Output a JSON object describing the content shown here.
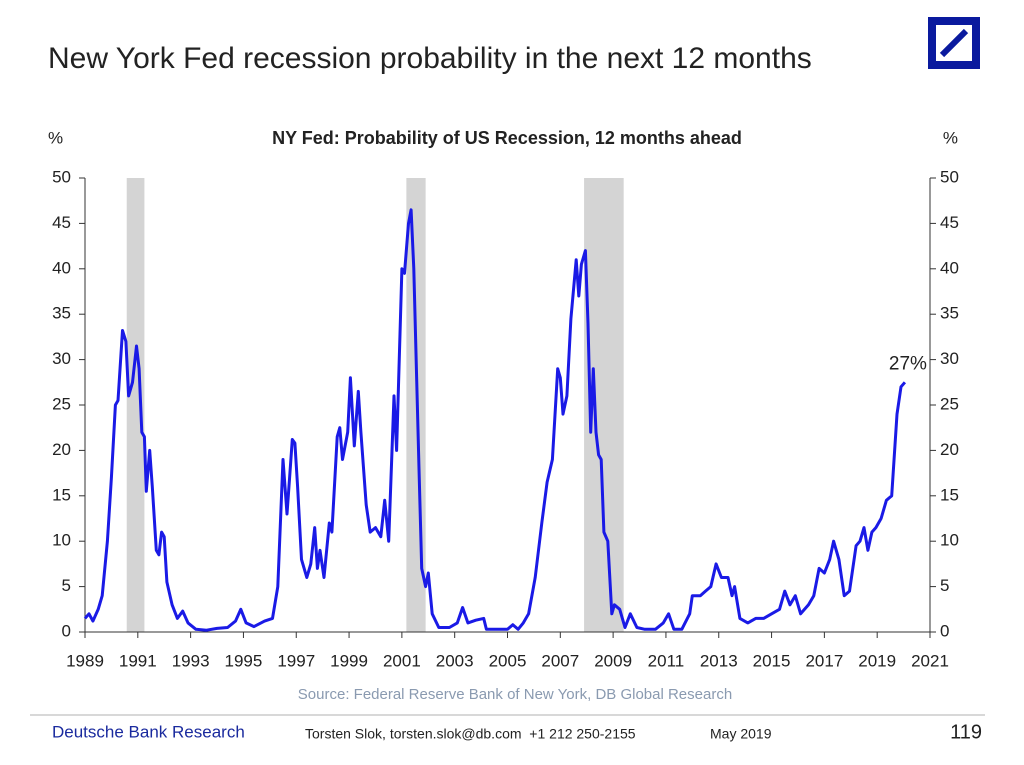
{
  "header": {
    "title": "New York Fed recession probability in the next 12 months"
  },
  "chart_data": {
    "type": "line",
    "title": "NY Fed: Probability of US Recession, 12 months ahead",
    "y_label": "%",
    "y2_label": "%",
    "source": "Source: Federal Reserve Bank of New York, DB Global Research",
    "annotation": "27%",
    "color": "#1a1ae6",
    "recession_color": "#d4d4d4",
    "recessions": [
      [
        1990.58,
        1991.25
      ],
      [
        2001.17,
        2001.9
      ],
      [
        2007.9,
        2009.4
      ]
    ],
    "xlim": [
      1989,
      2021
    ],
    "xticks": [
      1989,
      1991,
      1993,
      1995,
      1997,
      1999,
      2001,
      2003,
      2005,
      2007,
      2009,
      2011,
      2013,
      2015,
      2017,
      2019,
      2021
    ],
    "ylim": [
      0,
      50
    ],
    "yticks": [
      0,
      5,
      10,
      15,
      20,
      25,
      30,
      35,
      40,
      45,
      50
    ],
    "y2lim": [
      0,
      50
    ],
    "y2ticks": [
      0,
      5,
      10,
      15,
      20,
      25,
      30,
      35,
      40,
      45,
      50
    ],
    "x": [
      1989.0,
      1989.15,
      1989.3,
      1989.5,
      1989.65,
      1989.85,
      1990.0,
      1990.15,
      1990.25,
      1990.42,
      1990.55,
      1990.65,
      1990.8,
      1990.95,
      1991.05,
      1991.15,
      1991.25,
      1991.32,
      1991.45,
      1991.55,
      1991.7,
      1991.8,
      1991.9,
      1992.0,
      1992.1,
      1992.3,
      1992.5,
      1992.7,
      1992.9,
      1993.2,
      1993.6,
      1994.0,
      1994.4,
      1994.7,
      1994.9,
      1995.1,
      1995.4,
      1995.8,
      1996.1,
      1996.3,
      1996.5,
      1996.65,
      1996.75,
      1996.85,
      1996.95,
      1997.05,
      1997.2,
      1997.4,
      1997.55,
      1997.7,
      1997.8,
      1997.9,
      1998.05,
      1998.25,
      1998.35,
      1998.55,
      1998.65,
      1998.75,
      1998.95,
      1999.05,
      1999.2,
      1999.35,
      1999.45,
      1999.65,
      1999.8,
      2000.0,
      2000.2,
      2000.35,
      2000.5,
      2000.7,
      2000.8,
      2001.0,
      2001.1,
      2001.25,
      2001.35,
      2001.45,
      2001.65,
      2001.75,
      2001.9,
      2002.0,
      2002.15,
      2002.4,
      2002.8,
      2003.1,
      2003.3,
      2003.5,
      2003.8,
      2004.1,
      2004.2,
      2004.6,
      2005.0,
      2005.2,
      2005.4,
      2005.6,
      2005.8,
      2006.05,
      2006.3,
      2006.5,
      2006.7,
      2006.9,
      2007.0,
      2007.1,
      2007.25,
      2007.4,
      2007.6,
      2007.7,
      2007.8,
      2007.95,
      2008.05,
      2008.15,
      2008.25,
      2008.35,
      2008.45,
      2008.55,
      2008.65,
      2008.8,
      2008.95,
      2009.05,
      2009.25,
      2009.45,
      2009.65,
      2009.9,
      2010.2,
      2010.6,
      2010.9,
      2011.1,
      2011.3,
      2011.6,
      2011.9,
      2012.0,
      2012.3,
      2012.5,
      2012.7,
      2012.9,
      2013.1,
      2013.35,
      2013.5,
      2013.6,
      2013.8,
      2014.1,
      2014.4,
      2014.7,
      2015.0,
      2015.3,
      2015.5,
      2015.7,
      2015.9,
      2016.1,
      2016.4,
      2016.6,
      2016.8,
      2017.0,
      2017.2,
      2017.35,
      2017.55,
      2017.75,
      2017.95,
      2018.2,
      2018.35,
      2018.5,
      2018.65,
      2018.8,
      2018.95,
      2019.15,
      2019.35,
      2019.55,
      2019.75,
      2019.9,
      2020.05
    ],
    "values": [
      1.5,
      2,
      1.2,
      2.5,
      4,
      10,
      17,
      25,
      25.5,
      33.2,
      32,
      26,
      27.5,
      31.5,
      29,
      22,
      21.5,
      15.5,
      20,
      16,
      9,
      8.5,
      11,
      10.5,
      5.5,
      3,
      1.5,
      2.3,
      1,
      0.3,
      0.2,
      0.4,
      0.5,
      1.2,
      2.5,
      1,
      0.6,
      1.2,
      1.5,
      5,
      19,
      13,
      17,
      21.2,
      20.8,
      16,
      8,
      6,
      7.5,
      11.5,
      7,
      9,
      6,
      12,
      11,
      21.5,
      22.5,
      19,
      22,
      28,
      20.5,
      26.5,
      22,
      14,
      11,
      11.5,
      10.5,
      14.5,
      10,
      26,
      20,
      40,
      39.5,
      45,
      46.5,
      40,
      18,
      7,
      5,
      6.5,
      2,
      0.5,
      0.5,
      1,
      2.7,
      1,
      1.3,
      1.5,
      0.3,
      0.3,
      0.3,
      0.8,
      0.3,
      1,
      2,
      6,
      12,
      16.5,
      19,
      29,
      28,
      24,
      26,
      34.5,
      41,
      37,
      40.5,
      42,
      34,
      22,
      29,
      22,
      19.5,
      19,
      11,
      10,
      2,
      3,
      2.5,
      0.5,
      2,
      0.5,
      0.3,
      0.3,
      1,
      2,
      0.3,
      0.3,
      2,
      4,
      4,
      4.5,
      5,
      7.5,
      6,
      6,
      4,
      5,
      1.5,
      1,
      1.5,
      1.5,
      2,
      2.5,
      4.5,
      3,
      4,
      2,
      3,
      4,
      7,
      6.5,
      8,
      10,
      8,
      4,
      4.5,
      9.5,
      10,
      11.5,
      9,
      11,
      11.5,
      12.5,
      14.5,
      15,
      24,
      27,
      27.5
    ]
  },
  "footer": {
    "brand": "Deutsche Bank Research",
    "contact": "Torsten Slok, torsten.slok@db.com  +1 212 250-2155",
    "date": "May 2019",
    "page": "119"
  }
}
